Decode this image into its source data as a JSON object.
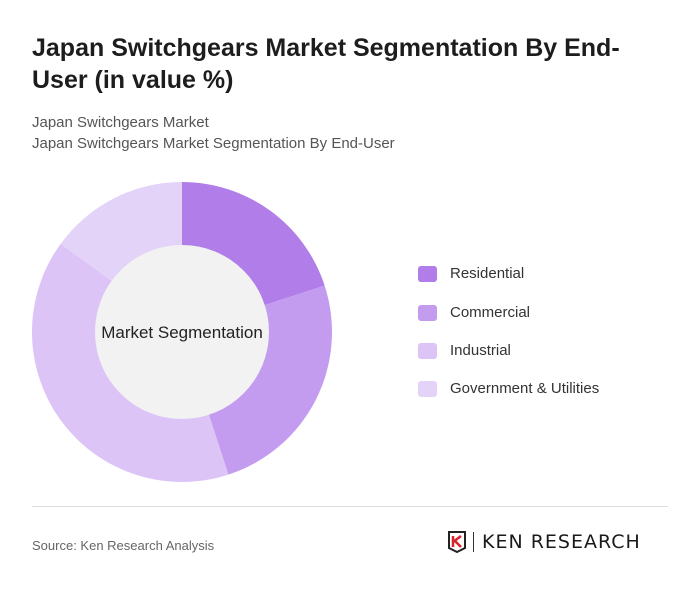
{
  "title": "Japan Switchgears Market Segmentation By End-User (in value %)",
  "subtitle1": "Japan Switchgears Market",
  "subtitle2": "Japan Switchgears Market Segmentation By End-User",
  "source": "Source: Ken Research Analysis",
  "logo_text": "KEN RESEARCH",
  "chart_data": {
    "type": "pie",
    "donut": true,
    "center_label": "Market Segmentation",
    "categories": [
      "Residential",
      "Commercial",
      "Industrial",
      "Government & Utilities"
    ],
    "values": [
      20,
      25,
      40,
      15
    ],
    "colors": [
      "#b07de9",
      "#c49cef",
      "#dcc4f6",
      "#e3d3f8"
    ],
    "legend_position": "right"
  }
}
